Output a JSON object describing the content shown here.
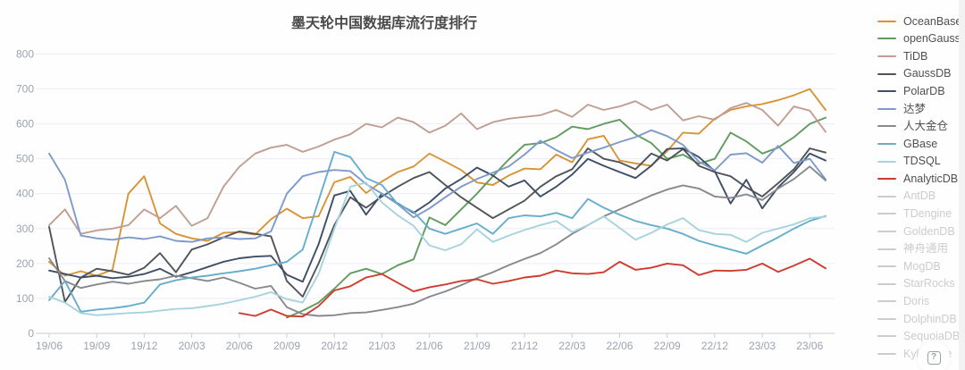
{
  "title": "墨天轮中国数据库流行度排行",
  "help": {
    "label": "?"
  },
  "chart_data": {
    "type": "line",
    "title": "墨天轮中国数据库流行度排行",
    "xlabel": "",
    "ylabel": "",
    "ylim": [
      0,
      800
    ],
    "y_ticks": [
      0,
      100,
      200,
      300,
      400,
      500,
      600,
      700,
      800
    ],
    "grid": true,
    "legend_position": "right",
    "x": [
      "19/06",
      "19/07",
      "19/08",
      "19/09",
      "19/10",
      "19/11",
      "19/12",
      "20/01",
      "20/02",
      "20/03",
      "20/04",
      "20/05",
      "20/06",
      "20/07",
      "20/08",
      "20/09",
      "20/10",
      "20/11",
      "20/12",
      "21/01",
      "21/02",
      "21/03",
      "21/04",
      "21/05",
      "21/06",
      "21/07",
      "21/08",
      "21/09",
      "21/10",
      "21/11",
      "21/12",
      "22/01",
      "22/02",
      "22/03",
      "22/04",
      "22/05",
      "22/06",
      "22/07",
      "22/08",
      "22/09",
      "22/10",
      "22/11",
      "22/12",
      "23/01",
      "23/02",
      "23/03",
      "23/04",
      "23/05",
      "23/06",
      "23/07"
    ],
    "x_tick_labels": [
      "19/06",
      "19/09",
      "19/12",
      "20/03",
      "20/06",
      "20/09",
      "20/12",
      "21/03",
      "21/06",
      "21/09",
      "21/12",
      "22/03",
      "22/06",
      "22/09",
      "22/12",
      "23/03",
      "23/06"
    ],
    "series": [
      {
        "name": "OceanBase",
        "color": "#d79435",
        "values": [
          205,
          165,
          178,
          165,
          182,
          400,
          450,
          315,
          285,
          272,
          265,
          288,
          290,
          283,
          327,
          357,
          330,
          335,
          433,
          448,
          402,
          435,
          462,
          478,
          515,
          492,
          468,
          432,
          425,
          452,
          472,
          470,
          512,
          490,
          556,
          566,
          495,
          487,
          480,
          522,
          575,
          572,
          615,
          640,
          650,
          657,
          668,
          682,
          700,
          640
        ]
      },
      {
        "name": "openGauss",
        "color": "#609c60",
        "values": [
          null,
          null,
          null,
          null,
          null,
          null,
          null,
          null,
          null,
          null,
          null,
          null,
          null,
          null,
          null,
          45,
          65,
          88,
          128,
          172,
          185,
          170,
          195,
          212,
          332,
          310,
          355,
          400,
          450,
          498,
          540,
          545,
          562,
          592,
          585,
          600,
          612,
          570,
          545,
          500,
          512,
          486,
          500,
          575,
          550,
          515,
          532,
          562,
          600,
          618
        ]
      },
      {
        "name": "TiDB",
        "color": "#c09e92",
        "values": [
          310,
          355,
          285,
          295,
          300,
          310,
          355,
          330,
          365,
          308,
          330,
          420,
          477,
          515,
          532,
          540,
          520,
          535,
          555,
          570,
          600,
          590,
          618,
          605,
          575,
          595,
          630,
          585,
          605,
          615,
          620,
          625,
          640,
          620,
          655,
          640,
          650,
          665,
          640,
          655,
          610,
          622,
          612,
          645,
          660,
          640,
          595,
          650,
          638,
          577
        ]
      },
      {
        "name": "GaussDB",
        "color": "#50545a",
        "values": [
          305,
          90,
          160,
          185,
          178,
          168,
          188,
          230,
          175,
          240,
          255,
          275,
          292,
          285,
          278,
          150,
          105,
          200,
          310,
          390,
          360,
          392,
          420,
          445,
          462,
          425,
          390,
          360,
          330,
          355,
          380,
          420,
          450,
          470,
          530,
          500,
          490,
          470,
          515,
          495,
          528,
          480,
          462,
          450,
          418,
          392,
          430,
          470,
          530,
          518
        ]
      },
      {
        "name": "PolarDB",
        "color": "#3d4e66",
        "values": [
          180,
          170,
          160,
          165,
          158,
          162,
          170,
          185,
          162,
          175,
          190,
          205,
          215,
          220,
          222,
          168,
          148,
          255,
          395,
          408,
          340,
          400,
          372,
          345,
          375,
          415,
          442,
          475,
          452,
          420,
          438,
          392,
          420,
          455,
          500,
          480,
          462,
          445,
          480,
          528,
          530,
          505,
          465,
          372,
          440,
          358,
          418,
          462,
          515,
          495
        ]
      },
      {
        "name": "达梦",
        "color": "#7e9ac9",
        "values": [
          515,
          440,
          280,
          272,
          268,
          275,
          270,
          278,
          265,
          262,
          272,
          275,
          270,
          272,
          292,
          400,
          450,
          462,
          468,
          465,
          428,
          400,
          370,
          332,
          358,
          390,
          420,
          442,
          460,
          478,
          512,
          552,
          525,
          502,
          518,
          532,
          548,
          562,
          582,
          565,
          540,
          492,
          467,
          512,
          516,
          489,
          537,
          488,
          500,
          441
        ]
      },
      {
        "name": "人大金仓",
        "color": "#87898c",
        "values": [
          215,
          150,
          130,
          140,
          148,
          142,
          150,
          155,
          165,
          158,
          150,
          160,
          145,
          128,
          136,
          75,
          55,
          50,
          52,
          58,
          60,
          67,
          75,
          85,
          105,
          120,
          138,
          158,
          175,
          195,
          213,
          230,
          255,
          285,
          310,
          335,
          355,
          375,
          395,
          412,
          424,
          415,
          392,
          388,
          398,
          382,
          415,
          442,
          478,
          438
        ]
      },
      {
        "name": "GBase",
        "color": "#66aecb",
        "values": [
          95,
          150,
          62,
          68,
          72,
          78,
          88,
          140,
          152,
          160,
          165,
          172,
          178,
          185,
          195,
          205,
          240,
          380,
          520,
          505,
          445,
          425,
          370,
          348,
          300,
          285,
          300,
          315,
          285,
          330,
          338,
          335,
          345,
          330,
          385,
          360,
          340,
          322,
          310,
          300,
          285,
          265,
          252,
          240,
          228,
          252,
          275,
          300,
          322,
          336
        ]
      },
      {
        "name": "TDSQL",
        "color": "#a6d3de",
        "values": [
          105,
          88,
          58,
          52,
          55,
          58,
          60,
          65,
          70,
          72,
          78,
          85,
          95,
          105,
          118,
          98,
          88,
          170,
          300,
          420,
          432,
          375,
          338,
          308,
          252,
          238,
          255,
          298,
          262,
          280,
          296,
          310,
          322,
          290,
          310,
          335,
          302,
          268,
          288,
          312,
          330,
          296,
          285,
          282,
          262,
          288,
          300,
          312,
          330,
          334
        ]
      },
      {
        "name": "AnalyticDB",
        "color": "#cf3b2f",
        "values": [
          null,
          null,
          null,
          null,
          null,
          null,
          null,
          null,
          null,
          null,
          null,
          null,
          58,
          50,
          68,
          50,
          48,
          78,
          123,
          135,
          160,
          170,
          145,
          120,
          132,
          140,
          150,
          155,
          142,
          150,
          160,
          165,
          180,
          172,
          170,
          175,
          205,
          182,
          188,
          200,
          195,
          167,
          180,
          179,
          182,
          200,
          176,
          194,
          214,
          186
        ]
      }
    ],
    "inactive_series": [
      "AntDB",
      "TDengine",
      "GoldenDB",
      "神舟通用",
      "MogDB",
      "StarRocks",
      "Doris",
      "DolphinDB",
      "SequoiaDB",
      "Kyligence"
    ],
    "inactive_color": "#cccccc",
    "axis_label_color": "#9aa3b0",
    "grid_line_color": "#e9eef4",
    "axis_line_color": "#c9ccd1"
  }
}
